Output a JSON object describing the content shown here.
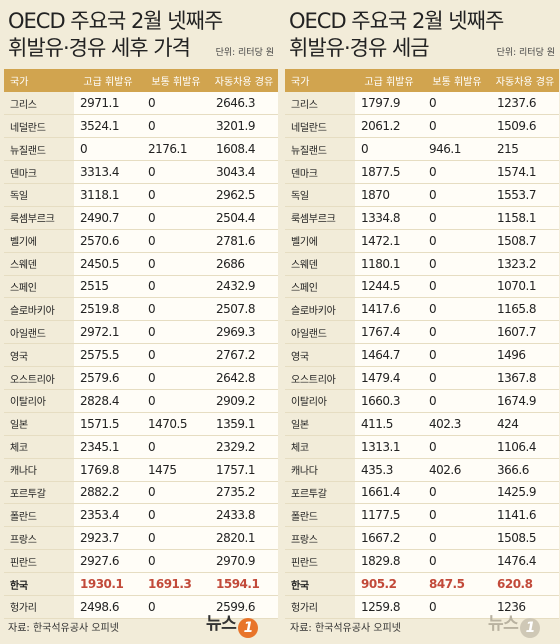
{
  "left_panel": {
    "title_line1": "OECD 주요국 2월 넷째주",
    "title_line2": "휘발유·경유 세후 가격",
    "unit": "단위: 리터당 원",
    "headers": [
      "국가",
      "고급 휘발유",
      "보통 휘발유",
      "자동차용 경유"
    ],
    "rows": [
      [
        "그리스",
        "2971.1",
        "0",
        "2646.3"
      ],
      [
        "네덜란드",
        "3524.1",
        "0",
        "3201.9"
      ],
      [
        "뉴질랜드",
        "0",
        "2176.1",
        "1608.4"
      ],
      [
        "덴마크",
        "3313.4",
        "0",
        "3043.4"
      ],
      [
        "독일",
        "3118.1",
        "0",
        "2962.5"
      ],
      [
        "룩셈부르크",
        "2490.7",
        "0",
        "2504.4"
      ],
      [
        "벨기에",
        "2570.6",
        "0",
        "2781.6"
      ],
      [
        "스웨덴",
        "2450.5",
        "0",
        "2686"
      ],
      [
        "스페인",
        "2515",
        "0",
        "2432.9"
      ],
      [
        "슬로바키아",
        "2519.8",
        "0",
        "2507.8"
      ],
      [
        "아일랜드",
        "2972.1",
        "0",
        "2969.3"
      ],
      [
        "영국",
        "2575.5",
        "0",
        "2767.2"
      ],
      [
        "오스트리아",
        "2579.6",
        "0",
        "2642.8"
      ],
      [
        "이탈리아",
        "2828.4",
        "0",
        "2909.2"
      ],
      [
        "일본",
        "1571.5",
        "1470.5",
        "1359.1"
      ],
      [
        "체코",
        "2345.1",
        "0",
        "2329.2"
      ],
      [
        "캐나다",
        "1769.8",
        "1475",
        "1757.1"
      ],
      [
        "포르투갈",
        "2882.2",
        "0",
        "2735.2"
      ],
      [
        "폴란드",
        "2353.4",
        "0",
        "2433.8"
      ],
      [
        "프랑스",
        "2923.7",
        "0",
        "2820.1"
      ],
      [
        "핀란드",
        "2927.6",
        "0",
        "2970.9"
      ],
      [
        "한국",
        "1930.1",
        "1691.3",
        "1594.1"
      ],
      [
        "헝가리",
        "2498.6",
        "0",
        "2599.6"
      ]
    ],
    "highlight_row": 21
  },
  "right_panel": {
    "title_line1": "OECD 주요국 2월 넷째주",
    "title_line2": "휘발유·경유 세금",
    "unit": "단위: 리터당 원",
    "headers": [
      "국가",
      "고급 휘발유",
      "보통 휘발유",
      "자동차용 경유"
    ],
    "rows": [
      [
        "그리스",
        "1797.9",
        "0",
        "1237.6"
      ],
      [
        "네덜란드",
        "2061.2",
        "0",
        "1509.6"
      ],
      [
        "뉴질랜드",
        "0",
        "946.1",
        "215"
      ],
      [
        "덴마크",
        "1877.5",
        "0",
        "1574.1"
      ],
      [
        "독일",
        "1870",
        "0",
        "1553.7"
      ],
      [
        "룩셈부르크",
        "1334.8",
        "0",
        "1158.1"
      ],
      [
        "벨기에",
        "1472.1",
        "0",
        "1508.7"
      ],
      [
        "스웨덴",
        "1180.1",
        "0",
        "1323.2"
      ],
      [
        "스페인",
        "1244.5",
        "0",
        "1070.1"
      ],
      [
        "슬로바키아",
        "1417.6",
        "0",
        "1165.8"
      ],
      [
        "아일랜드",
        "1767.4",
        "0",
        "1607.7"
      ],
      [
        "영국",
        "1464.7",
        "0",
        "1496"
      ],
      [
        "오스트리아",
        "1479.4",
        "0",
        "1367.8"
      ],
      [
        "이탈리아",
        "1660.3",
        "0",
        "1674.9"
      ],
      [
        "일본",
        "411.5",
        "402.3",
        "424"
      ],
      [
        "체코",
        "1313.1",
        "0",
        "1106.4"
      ],
      [
        "캐나다",
        "435.3",
        "402.6",
        "366.6"
      ],
      [
        "포르투갈",
        "1661.4",
        "0",
        "1425.9"
      ],
      [
        "폴란드",
        "1177.5",
        "0",
        "1141.6"
      ],
      [
        "프랑스",
        "1667.2",
        "0",
        "1508.5"
      ],
      [
        "핀란드",
        "1829.8",
        "0",
        "1476.4"
      ],
      [
        "한국",
        "905.2",
        "847.5",
        "620.8"
      ],
      [
        "헝가리",
        "1259.8",
        "0",
        "1236"
      ]
    ],
    "highlight_row": 21
  },
  "footer": {
    "source": "자료: 한국석유공사 오피넷",
    "logo_text": "뉴스",
    "logo_mark": "1"
  },
  "colors": {
    "background": "#f2ecd9",
    "header_bg": "#d1a44f",
    "highlight_text": "#c24a3a",
    "logo_orange": "#e8742a"
  }
}
